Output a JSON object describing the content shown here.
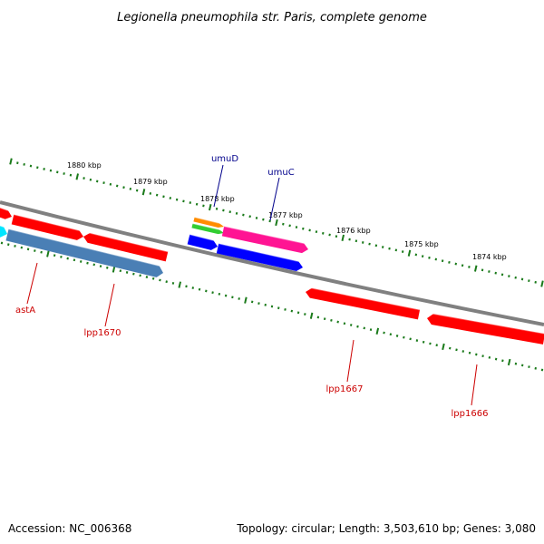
{
  "title": "Legionella pneumophila str. Paris, complete genome",
  "footer": {
    "accession": "Accession: NC_006368",
    "topology": "Topology: circular; Length: 3,503,610 bp; Genes: 3,080"
  },
  "kbp_labels": [
    "1880 kbp",
    "1879 kbp",
    "1878 kbp",
    "1877 kbp",
    "1876 kbp",
    "1875 kbp",
    "1874 kbp"
  ],
  "gene_labels": [
    {
      "text": "umuD",
      "color": "#00008b"
    },
    {
      "text": "umuC",
      "color": "#00008b"
    },
    {
      "text": "astA",
      "color": "#cc0000"
    },
    {
      "text": "lpp1670",
      "color": "#cc0000"
    },
    {
      "text": "lpp1667",
      "color": "#cc0000"
    },
    {
      "text": "lpp1666",
      "color": "#cc0000"
    }
  ],
  "colors": {
    "backbone": "#808080",
    "ticks": "#1a7a1a",
    "red_gene": "#ff0000",
    "blue_gene": "#0000ff",
    "steelblue_gene": "#4a7fb5",
    "pink_gene": "#ff1493",
    "orange_gene": "#ff8c00",
    "green_gene": "#32cd32",
    "cyan_gene": "#00e5ff"
  }
}
